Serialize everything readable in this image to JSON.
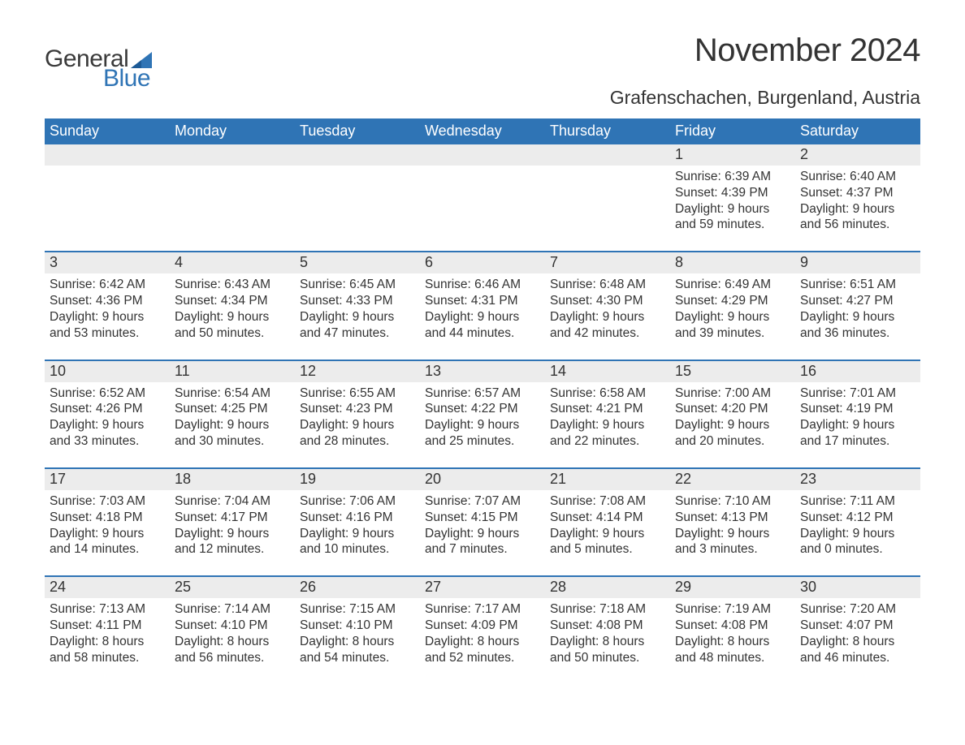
{
  "logo": {
    "text1": "General",
    "text2": "Blue",
    "icon_color": "#2f74b5"
  },
  "title": "November 2024",
  "location": "Grafenschachen, Burgenland, Austria",
  "colors": {
    "header_bg": "#2f74b5",
    "header_text": "#ffffff",
    "daynum_bg": "#ececec",
    "week_border": "#2f74b5",
    "body_text": "#333333",
    "background": "#ffffff"
  },
  "typography": {
    "title_fontsize": 40,
    "location_fontsize": 23,
    "weekday_fontsize": 18,
    "daynum_fontsize": 18,
    "cell_fontsize": 15.5,
    "font_family": "Arial"
  },
  "layout": {
    "columns": 7,
    "rows": 5,
    "week_border_width": 2
  },
  "weekdays": [
    "Sunday",
    "Monday",
    "Tuesday",
    "Wednesday",
    "Thursday",
    "Friday",
    "Saturday"
  ],
  "weeks": [
    {
      "days": [
        {
          "num": "",
          "sunrise": "",
          "sunset": "",
          "daylight": ""
        },
        {
          "num": "",
          "sunrise": "",
          "sunset": "",
          "daylight": ""
        },
        {
          "num": "",
          "sunrise": "",
          "sunset": "",
          "daylight": ""
        },
        {
          "num": "",
          "sunrise": "",
          "sunset": "",
          "daylight": ""
        },
        {
          "num": "",
          "sunrise": "",
          "sunset": "",
          "daylight": ""
        },
        {
          "num": "1",
          "sunrise": "Sunrise: 6:39 AM",
          "sunset": "Sunset: 4:39 PM",
          "daylight": "Daylight: 9 hours and 59 minutes."
        },
        {
          "num": "2",
          "sunrise": "Sunrise: 6:40 AM",
          "sunset": "Sunset: 4:37 PM",
          "daylight": "Daylight: 9 hours and 56 minutes."
        }
      ]
    },
    {
      "days": [
        {
          "num": "3",
          "sunrise": "Sunrise: 6:42 AM",
          "sunset": "Sunset: 4:36 PM",
          "daylight": "Daylight: 9 hours and 53 minutes."
        },
        {
          "num": "4",
          "sunrise": "Sunrise: 6:43 AM",
          "sunset": "Sunset: 4:34 PM",
          "daylight": "Daylight: 9 hours and 50 minutes."
        },
        {
          "num": "5",
          "sunrise": "Sunrise: 6:45 AM",
          "sunset": "Sunset: 4:33 PM",
          "daylight": "Daylight: 9 hours and 47 minutes."
        },
        {
          "num": "6",
          "sunrise": "Sunrise: 6:46 AM",
          "sunset": "Sunset: 4:31 PM",
          "daylight": "Daylight: 9 hours and 44 minutes."
        },
        {
          "num": "7",
          "sunrise": "Sunrise: 6:48 AM",
          "sunset": "Sunset: 4:30 PM",
          "daylight": "Daylight: 9 hours and 42 minutes."
        },
        {
          "num": "8",
          "sunrise": "Sunrise: 6:49 AM",
          "sunset": "Sunset: 4:29 PM",
          "daylight": "Daylight: 9 hours and 39 minutes."
        },
        {
          "num": "9",
          "sunrise": "Sunrise: 6:51 AM",
          "sunset": "Sunset: 4:27 PM",
          "daylight": "Daylight: 9 hours and 36 minutes."
        }
      ]
    },
    {
      "days": [
        {
          "num": "10",
          "sunrise": "Sunrise: 6:52 AM",
          "sunset": "Sunset: 4:26 PM",
          "daylight": "Daylight: 9 hours and 33 minutes."
        },
        {
          "num": "11",
          "sunrise": "Sunrise: 6:54 AM",
          "sunset": "Sunset: 4:25 PM",
          "daylight": "Daylight: 9 hours and 30 minutes."
        },
        {
          "num": "12",
          "sunrise": "Sunrise: 6:55 AM",
          "sunset": "Sunset: 4:23 PM",
          "daylight": "Daylight: 9 hours and 28 minutes."
        },
        {
          "num": "13",
          "sunrise": "Sunrise: 6:57 AM",
          "sunset": "Sunset: 4:22 PM",
          "daylight": "Daylight: 9 hours and 25 minutes."
        },
        {
          "num": "14",
          "sunrise": "Sunrise: 6:58 AM",
          "sunset": "Sunset: 4:21 PM",
          "daylight": "Daylight: 9 hours and 22 minutes."
        },
        {
          "num": "15",
          "sunrise": "Sunrise: 7:00 AM",
          "sunset": "Sunset: 4:20 PM",
          "daylight": "Daylight: 9 hours and 20 minutes."
        },
        {
          "num": "16",
          "sunrise": "Sunrise: 7:01 AM",
          "sunset": "Sunset: 4:19 PM",
          "daylight": "Daylight: 9 hours and 17 minutes."
        }
      ]
    },
    {
      "days": [
        {
          "num": "17",
          "sunrise": "Sunrise: 7:03 AM",
          "sunset": "Sunset: 4:18 PM",
          "daylight": "Daylight: 9 hours and 14 minutes."
        },
        {
          "num": "18",
          "sunrise": "Sunrise: 7:04 AM",
          "sunset": "Sunset: 4:17 PM",
          "daylight": "Daylight: 9 hours and 12 minutes."
        },
        {
          "num": "19",
          "sunrise": "Sunrise: 7:06 AM",
          "sunset": "Sunset: 4:16 PM",
          "daylight": "Daylight: 9 hours and 10 minutes."
        },
        {
          "num": "20",
          "sunrise": "Sunrise: 7:07 AM",
          "sunset": "Sunset: 4:15 PM",
          "daylight": "Daylight: 9 hours and 7 minutes."
        },
        {
          "num": "21",
          "sunrise": "Sunrise: 7:08 AM",
          "sunset": "Sunset: 4:14 PM",
          "daylight": "Daylight: 9 hours and 5 minutes."
        },
        {
          "num": "22",
          "sunrise": "Sunrise: 7:10 AM",
          "sunset": "Sunset: 4:13 PM",
          "daylight": "Daylight: 9 hours and 3 minutes."
        },
        {
          "num": "23",
          "sunrise": "Sunrise: 7:11 AM",
          "sunset": "Sunset: 4:12 PM",
          "daylight": "Daylight: 9 hours and 0 minutes."
        }
      ]
    },
    {
      "days": [
        {
          "num": "24",
          "sunrise": "Sunrise: 7:13 AM",
          "sunset": "Sunset: 4:11 PM",
          "daylight": "Daylight: 8 hours and 58 minutes."
        },
        {
          "num": "25",
          "sunrise": "Sunrise: 7:14 AM",
          "sunset": "Sunset: 4:10 PM",
          "daylight": "Daylight: 8 hours and 56 minutes."
        },
        {
          "num": "26",
          "sunrise": "Sunrise: 7:15 AM",
          "sunset": "Sunset: 4:10 PM",
          "daylight": "Daylight: 8 hours and 54 minutes."
        },
        {
          "num": "27",
          "sunrise": "Sunrise: 7:17 AM",
          "sunset": "Sunset: 4:09 PM",
          "daylight": "Daylight: 8 hours and 52 minutes."
        },
        {
          "num": "28",
          "sunrise": "Sunrise: 7:18 AM",
          "sunset": "Sunset: 4:08 PM",
          "daylight": "Daylight: 8 hours and 50 minutes."
        },
        {
          "num": "29",
          "sunrise": "Sunrise: 7:19 AM",
          "sunset": "Sunset: 4:08 PM",
          "daylight": "Daylight: 8 hours and 48 minutes."
        },
        {
          "num": "30",
          "sunrise": "Sunrise: 7:20 AM",
          "sunset": "Sunset: 4:07 PM",
          "daylight": "Daylight: 8 hours and 46 minutes."
        }
      ]
    }
  ]
}
